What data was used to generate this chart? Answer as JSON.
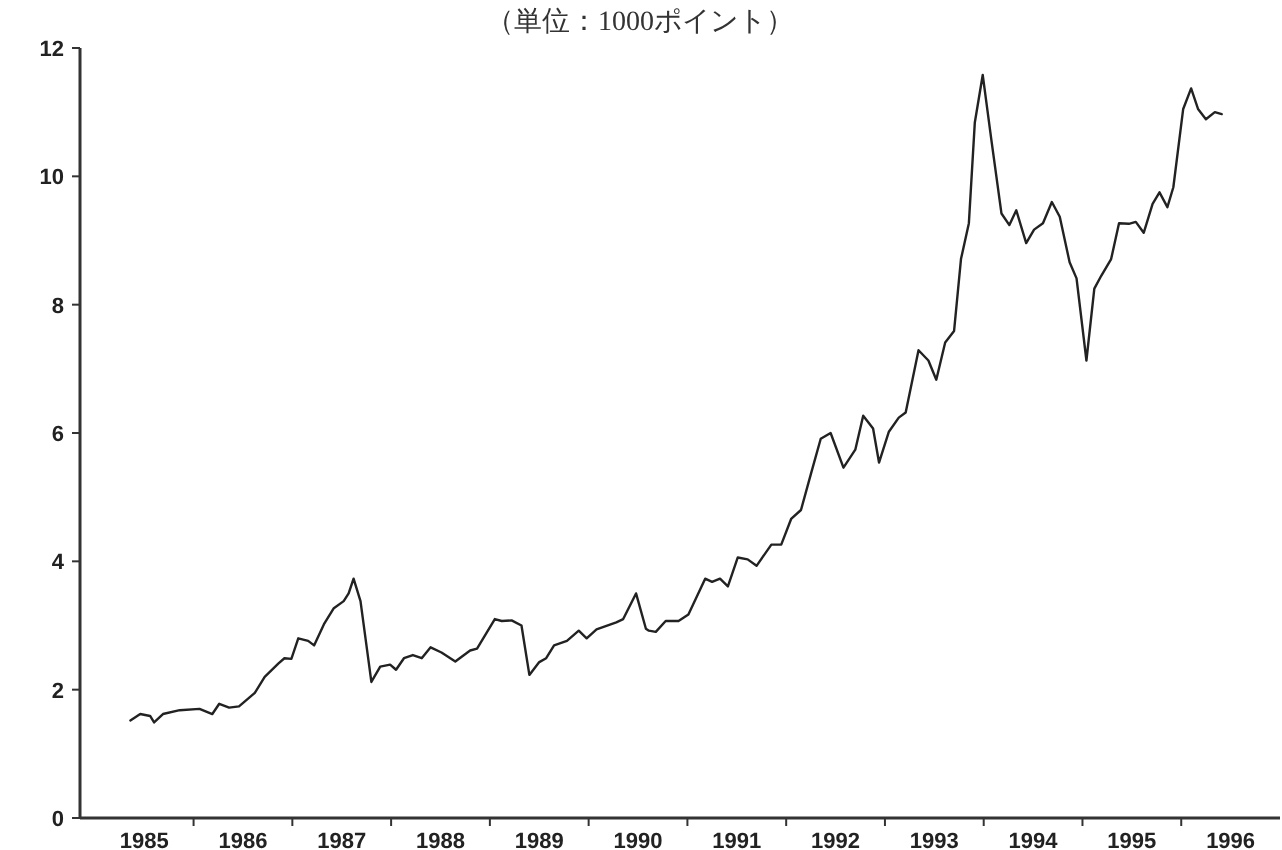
{
  "chart_data": {
    "type": "line",
    "title": "（単位：1000ポイント）",
    "xlim": [
      1984.85,
      1997.0
    ],
    "ylim": [
      0,
      12
    ],
    "yticks": [
      0,
      2,
      4,
      6,
      8,
      10,
      12
    ],
    "xticks": [
      {
        "value": 1985.5,
        "label": "1985"
      },
      {
        "value": 1986.5,
        "label": "1986"
      },
      {
        "value": 1987.5,
        "label": "1987"
      },
      {
        "value": 1988.5,
        "label": "1988"
      },
      {
        "value": 1989.5,
        "label": "1989"
      },
      {
        "value": 1990.5,
        "label": "1990"
      },
      {
        "value": 1991.5,
        "label": "1991"
      },
      {
        "value": 1992.5,
        "label": "1992"
      },
      {
        "value": 1993.5,
        "label": "1993"
      },
      {
        "value": 1994.5,
        "label": "1994"
      },
      {
        "value": 1995.5,
        "label": "1995"
      },
      {
        "value": 1996.5,
        "label": "1996"
      },
      {
        "value": 1986,
        "label": null
      },
      {
        "value": 1987,
        "label": null
      },
      {
        "value": 1988,
        "label": null
      },
      {
        "value": 1989,
        "label": null
      },
      {
        "value": 1990,
        "label": null
      },
      {
        "value": 1991,
        "label": null
      },
      {
        "value": 1992,
        "label": null
      },
      {
        "value": 1993,
        "label": null
      },
      {
        "value": 1994,
        "label": null
      },
      {
        "value": 1995,
        "label": null
      },
      {
        "value": 1996,
        "label": null
      }
    ],
    "x": [
      1985.36,
      1985.46,
      1985.56,
      1985.6,
      1985.69,
      1985.86,
      1986.06,
      1986.19,
      1986.26,
      1986.36,
      1986.46,
      1986.62,
      1986.72,
      1986.86,
      1986.92,
      1986.99,
      1987.06,
      1987.16,
      1987.22,
      1987.32,
      1987.42,
      1987.52,
      1987.57,
      1987.62,
      1987.69,
      1987.8,
      1987.89,
      1987.99,
      1988.05,
      1988.13,
      1988.22,
      1988.31,
      1988.4,
      1988.51,
      1988.65,
      1988.8,
      1988.87,
      1989.05,
      1989.12,
      1989.22,
      1989.32,
      1989.4,
      1989.5,
      1989.57,
      1989.65,
      1989.78,
      1989.9,
      1989.98,
      1990.08,
      1990.28,
      1990.35,
      1990.48,
      1990.58,
      1990.61,
      1990.68,
      1990.78,
      1990.91,
      1991.01,
      1991.18,
      1991.25,
      1991.33,
      1991.41,
      1991.51,
      1991.61,
      1991.7,
      1991.85,
      1991.95,
      1992.05,
      1992.15,
      1992.25,
      1992.35,
      1992.45,
      1992.58,
      1992.7,
      1992.78,
      1992.88,
      1992.94,
      1993.04,
      1993.14,
      1993.21,
      1993.34,
      1993.44,
      1993.52,
      1993.61,
      1993.7,
      1993.77,
      1993.85,
      1993.91,
      1993.99,
      1994.08,
      1994.18,
      1994.26,
      1994.33,
      1994.43,
      1994.51,
      1994.6,
      1994.69,
      1994.77,
      1994.87,
      1994.94,
      1995.04,
      1995.12,
      1995.19,
      1995.29,
      1995.37,
      1995.47,
      1995.54,
      1995.62,
      1995.71,
      1995.78,
      1995.86,
      1995.92,
      1996.02,
      1996.1,
      1996.17,
      1996.25,
      1996.34,
      1996.41
    ],
    "series": [
      {
        "color": "#222222",
        "values": [
          1.52,
          1.62,
          1.59,
          1.49,
          1.62,
          1.68,
          1.7,
          1.62,
          1.78,
          1.72,
          1.74,
          1.95,
          2.2,
          2.41,
          2.49,
          2.48,
          2.8,
          2.76,
          2.69,
          3.02,
          3.27,
          3.38,
          3.5,
          3.73,
          3.38,
          2.12,
          2.36,
          2.39,
          2.31,
          2.49,
          2.54,
          2.49,
          2.66,
          2.58,
          2.44,
          2.61,
          2.64,
          3.1,
          3.07,
          3.08,
          3.0,
          2.23,
          2.43,
          2.49,
          2.69,
          2.76,
          2.92,
          2.8,
          2.94,
          3.05,
          3.1,
          3.5,
          2.95,
          2.92,
          2.9,
          3.07,
          3.07,
          3.17,
          3.73,
          3.68,
          3.73,
          3.61,
          4.06,
          4.03,
          3.93,
          4.26,
          4.26,
          4.66,
          4.8,
          5.36,
          5.91,
          6.0,
          5.46,
          5.74,
          6.27,
          6.07,
          5.54,
          6.02,
          6.24,
          6.32,
          7.29,
          7.13,
          6.83,
          7.41,
          7.59,
          8.71,
          9.27,
          10.84,
          11.58,
          10.54,
          9.42,
          9.24,
          9.47,
          8.96,
          9.17,
          9.27,
          9.6,
          9.37,
          8.66,
          8.41,
          7.13,
          8.25,
          8.45,
          8.71,
          9.27,
          9.26,
          9.29,
          9.12,
          9.57,
          9.75,
          9.52,
          9.83,
          11.05,
          11.37,
          11.05,
          10.89,
          11.0,
          10.97
        ]
      }
    ]
  }
}
